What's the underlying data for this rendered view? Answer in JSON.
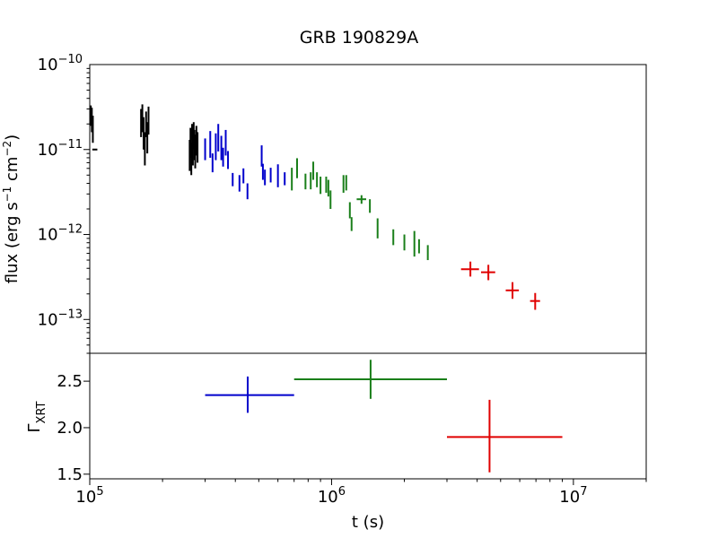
{
  "title": "GRB 190829A",
  "chart_data": [
    {
      "type": "scatter",
      "panel": "flux",
      "xscale": "log",
      "yscale": "log",
      "xlim": [
        100000,
        20000000
      ],
      "ylim": [
        4e-14,
        1e-10
      ],
      "ylabel": "flux (erg s⁻¹ cm⁻²)",
      "yticks": [
        {
          "value": 1e-13,
          "base": "10",
          "exp": "−13"
        },
        {
          "value": 1e-12,
          "base": "10",
          "exp": "−12"
        },
        {
          "value": 1e-11,
          "base": "10",
          "exp": "−11"
        },
        {
          "value": 1e-10,
          "base": "10",
          "exp": "−10"
        }
      ],
      "grid": false,
      "series": [
        {
          "color": "#000000",
          "points": [
            [
              101000,
              2.6e-11,
              1.9e-11,
              3.3e-11,
              0
            ],
            [
              102000,
              2.4e-11,
              1.6e-11,
              3.1e-11,
              0
            ],
            [
              103000,
              1.8e-11,
              1.2e-11,
              2.5e-11,
              0
            ],
            [
              105000,
              1e-11,
              0,
              0,
              2500
            ],
            [
              163000,
              2.1e-11,
              1.4e-11,
              3e-11,
              0
            ],
            [
              165000,
              2.4e-11,
              1.6e-11,
              3.4e-11,
              0
            ],
            [
              167000,
              1.6e-11,
              1e-11,
              2.4e-11,
              0
            ],
            [
              169000,
              1.1e-11,
              6.5e-12,
              1.6e-11,
              0
            ],
            [
              171000,
              2e-11,
              1.4e-11,
              2.8e-11,
              0
            ],
            [
              173000,
              1.4e-11,
              9e-12,
              2.1e-11,
              0
            ],
            [
              175000,
              2.2e-11,
              1.5e-11,
              3.2e-11,
              0
            ],
            [
              259000,
              9e-12,
              5.6e-12,
              1.3e-11,
              0
            ],
            [
              261000,
              1.2e-11,
              8e-12,
              1.8e-11,
              0
            ],
            [
              263000,
              8e-12,
              5e-12,
              1.2e-11,
              0
            ],
            [
              265000,
              1.4e-11,
              9e-12,
              2e-11,
              0
            ],
            [
              267000,
              1e-11,
              6.5e-12,
              1.5e-11,
              0
            ],
            [
              269000,
              1.5e-11,
              1e-11,
              2.1e-11,
              0
            ],
            [
              271000,
              1.2e-11,
              7.5e-12,
              1.7e-11,
              0
            ],
            [
              273000,
              1e-11,
              6e-12,
              1.5e-11,
              0
            ],
            [
              276000,
              1.3e-11,
              8.5e-12,
              1.9e-11,
              0
            ],
            [
              279000,
              1.1e-11,
              7e-12,
              1.6e-11,
              0
            ]
          ]
        },
        {
          "color": "#0000cc",
          "points": [
            [
              300000,
              1e-11,
              7.5e-12,
              1.35e-11,
              0
            ],
            [
              315000,
              1.2e-11,
              8e-12,
              1.65e-11,
              0
            ],
            [
              322000,
              7e-12,
              5.4e-12,
              9e-12,
              0
            ],
            [
              332000,
              1.1e-11,
              7.5e-12,
              1.55e-11,
              0
            ],
            [
              340000,
              1.35e-11,
              9.5e-12,
              2e-11,
              0
            ],
            [
              350000,
              1.1e-11,
              7.5e-12,
              1.45e-11,
              0
            ],
            [
              356000,
              8.2e-12,
              6.3e-12,
              1.05e-11,
              0
            ],
            [
              365000,
              1.25e-11,
              8.5e-12,
              1.7e-11,
              0
            ],
            [
              373000,
              7.6e-12,
              5.9e-12,
              9.6e-12,
              0
            ],
            [
              390000,
              4.5e-12,
              3.7e-12,
              5.3e-12,
              0
            ],
            [
              416000,
              4e-12,
              3.2e-12,
              5e-12,
              0
            ],
            [
              432000,
              5e-12,
              4e-12,
              6e-12,
              0
            ],
            [
              449000,
              3.3e-12,
              2.6e-12,
              4e-12,
              0
            ],
            [
              514000,
              8.5e-12,
              6.3e-12,
              1.12e-11,
              0
            ],
            [
              520000,
              5.5e-12,
              4.4e-12,
              6.8e-12,
              0
            ],
            [
              530000,
              4.7e-12,
              3.8e-12,
              5.8e-12,
              0
            ],
            [
              560000,
              5e-12,
              4.1e-12,
              6.1e-12,
              0
            ],
            [
              600000,
              5e-12,
              3.6e-12,
              6.7e-12,
              0
            ],
            [
              640000,
              4.6e-12,
              3.8e-12,
              5.4e-12,
              0
            ]
          ]
        },
        {
          "color": "#1a7f1a",
          "points": [
            [
              685000,
              4.6e-12,
              3.3e-12,
              6.1e-12,
              0
            ],
            [
              720000,
              6.3e-12,
              4.6e-12,
              7.9e-12,
              0
            ],
            [
              780000,
              4.2e-12,
              3.4e-12,
              5.2e-12,
              0
            ],
            [
              820000,
              4.3e-12,
              3.4e-12,
              5.4e-12,
              0
            ],
            [
              840000,
              5.6e-12,
              4.4e-12,
              7.2e-12,
              0
            ],
            [
              870000,
              4.4e-12,
              3.6e-12,
              5.4e-12,
              0
            ],
            [
              900000,
              3.8e-12,
              3e-12,
              4.8e-12,
              0
            ],
            [
              950000,
              3.9e-12,
              3.1e-12,
              4.8e-12,
              0
            ],
            [
              970000,
              3.5e-12,
              2.8e-12,
              4.4e-12,
              0
            ],
            [
              990000,
              2.7e-12,
              2e-12,
              3.3e-12,
              0
            ],
            [
              1120000,
              3.8e-12,
              3.1e-12,
              5e-12,
              0
            ],
            [
              1150000,
              4e-12,
              3.3e-12,
              5e-12,
              0
            ],
            [
              1190000,
              1.9e-12,
              1.55e-12,
              2.4e-12,
              0
            ],
            [
              1210000,
              1.35e-12,
              1.1e-12,
              1.6e-12,
              0
            ],
            [
              1330000,
              2.6e-12,
              2.3e-12,
              2.9e-12,
              60000
            ],
            [
              1440000,
              2.2e-12,
              1.8e-12,
              2.6e-12,
              0
            ],
            [
              1550000,
              1.2e-12,
              9e-13,
              1.55e-12,
              0
            ],
            [
              1800000,
              9.5e-13,
              7.5e-13,
              1.15e-12,
              0
            ],
            [
              2000000,
              8e-13,
              6.5e-13,
              1e-12,
              0
            ],
            [
              2200000,
              8e-13,
              5.5e-13,
              1.1e-12,
              0
            ],
            [
              2300000,
              7.2e-13,
              6e-13,
              8.8e-13,
              0
            ],
            [
              2500000,
              6e-13,
              5e-13,
              7.5e-13,
              0
            ]
          ]
        },
        {
          "color": "#e00000",
          "points": [
            [
              3750000,
              3.9e-13,
              3.2e-13,
              4.8e-13,
              320000
            ],
            [
              4450000,
              3.6e-13,
              2.9e-13,
              4.4e-13,
              300000
            ],
            [
              5600000,
              2.2e-13,
              1.75e-13,
              2.75e-13,
              350000
            ],
            [
              6950000,
              1.65e-13,
              1.3e-13,
              2.05e-13,
              330000
            ]
          ]
        }
      ]
    },
    {
      "type": "scatter",
      "panel": "photon-index",
      "xscale": "log",
      "xlim": [
        100000,
        20000000
      ],
      "ylim": [
        1.45,
        2.8
      ],
      "ylabel": "Γ",
      "ylabel_sub": "XRT",
      "xlabel": "t (s)",
      "yticks": [
        "1.5",
        "2.0",
        "2.5"
      ],
      "xticks": [
        {
          "value": 100000,
          "base": "10",
          "exp": "5"
        },
        {
          "value": 1000000,
          "base": "10",
          "exp": "6"
        },
        {
          "value": 10000000,
          "base": "10",
          "exp": "7"
        }
      ],
      "grid": false,
      "series": [
        {
          "color": "#0000cc",
          "points": [
            [
              450000,
              2.35,
              2.16,
              2.55,
              300000,
              700000
            ]
          ]
        },
        {
          "color": "#1a7f1a",
          "points": [
            [
              1450000,
              2.52,
              2.31,
              2.73,
              700000,
              3000000
            ]
          ]
        },
        {
          "color": "#e00000",
          "points": [
            [
              4500000,
              1.9,
              1.52,
              2.3,
              3000000,
              9000000
            ]
          ]
        }
      ]
    }
  ]
}
